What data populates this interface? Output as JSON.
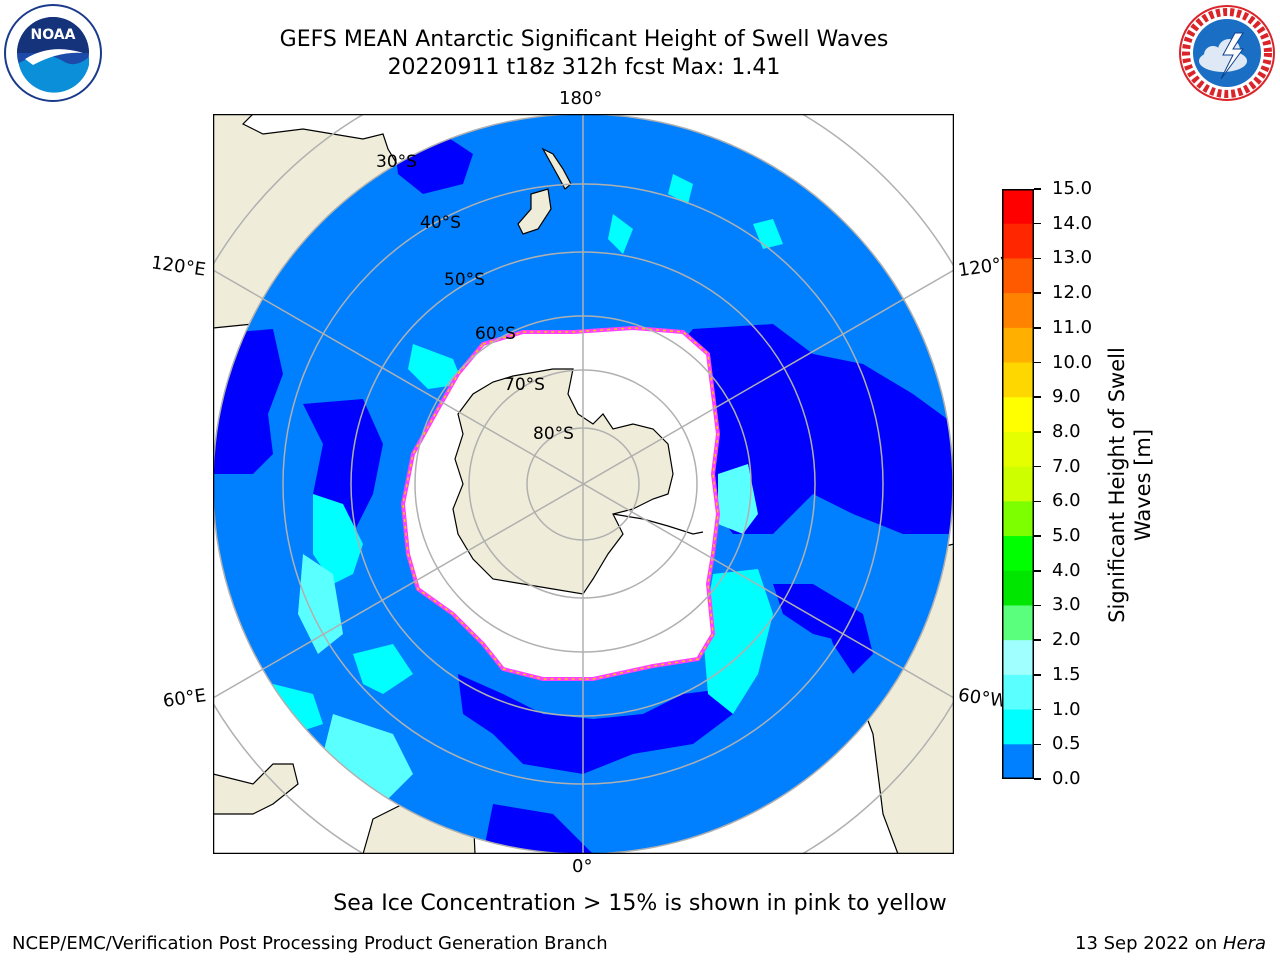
{
  "header": {
    "title_line1": "GEFS MEAN Antarctic Significant Height of Swell Waves",
    "title_line2": "20220911 t18z 312h fcst   Max: 1.41"
  },
  "logos": {
    "left": {
      "name": "noaa-logo",
      "text": "NOAA",
      "ring_text": "NATIONAL OCEANIC AND ATMOSPHERIC ADMINISTRATION · U.S. DEPARTMENT OF COMMERCE"
    },
    "right": {
      "name": "nws-logo",
      "ring_text": "NATIONAL WEATHER SERVICE"
    }
  },
  "map": {
    "longitude_labels": {
      "top": "180°",
      "bottom": "0°",
      "upper_left": "120°E",
      "upper_right": "120°W",
      "lower_left": "60°E",
      "lower_right": "60°W"
    },
    "latitude_labels": [
      "30°S",
      "40°S",
      "50°S",
      "60°S",
      "70°S",
      "80°S"
    ],
    "colors": {
      "ocean_low": "#0000ff",
      "ocean_mid": "#0080ff",
      "ocean_high": "#00ffff",
      "land": "#efedd9",
      "sea_ice": "#ffffff",
      "ice_edge_pink": "#ff40ff",
      "ice_edge_yellow": "#ffc800",
      "grid": "#b0b0b0"
    }
  },
  "colorbar": {
    "title_line1": "Significant Height of Swell",
    "title_line2": "Waves [m]",
    "ticks": [
      "15.0",
      "14.0",
      "13.0",
      "12.0",
      "11.0",
      "10.0",
      "9.0",
      "8.0",
      "7.0",
      "6.0",
      "5.0",
      "4.0",
      "3.0",
      "2.0",
      "1.5",
      "1.0",
      "0.5",
      "0.0"
    ],
    "bands": [
      "#ff0000",
      "#ff2600",
      "#ff5a00",
      "#ff8200",
      "#ffaf00",
      "#ffd700",
      "#ffff00",
      "#e6ff00",
      "#cdff00",
      "#7dff00",
      "#00ff00",
      "#00e600",
      "#5aff7d",
      "#a0ffff",
      "#5affff",
      "#00ffff",
      "#0080ff",
      "#0000ff"
    ]
  },
  "note": "Sea Ice Concentration > 15% is shown in pink to yellow",
  "footer": {
    "left": "NCEP/EMC/Verification Post Processing Product Generation Branch",
    "right_date": "13 Sep 2022 on ",
    "right_host": "Hera"
  }
}
